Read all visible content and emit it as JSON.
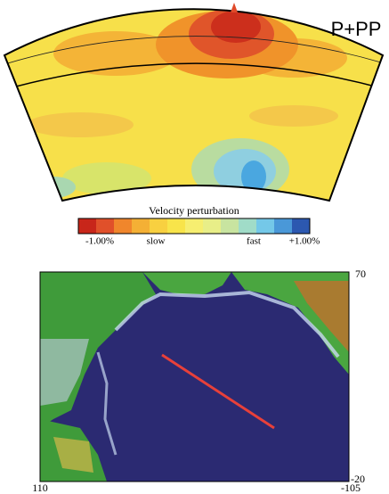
{
  "section": {
    "label": "P+PP"
  },
  "colorbar": {
    "title": "Velocity perturbation",
    "labels": [
      "-1.00%",
      "slow",
      "fast",
      "+1.00%"
    ]
  },
  "map": {
    "lat_labels": [
      "70",
      "-20"
    ],
    "lon_labels": [
      "110",
      "-105"
    ]
  }
}
